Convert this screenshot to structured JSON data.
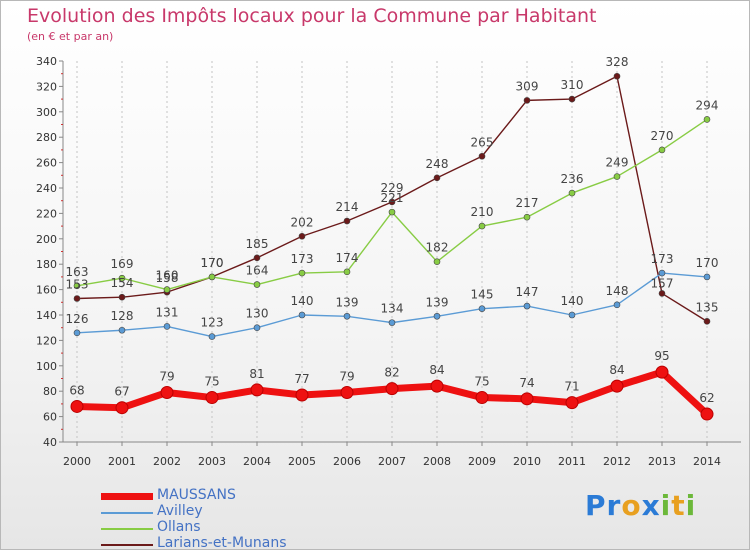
{
  "chart_data": {
    "type": "line",
    "title": "Evolution des Impôts locaux pour la Commune par Habitant",
    "subtitle": "(en € et par an)",
    "categories": [
      "2000",
      "2001",
      "2002",
      "2003",
      "2004",
      "2005",
      "2006",
      "2007",
      "2008",
      "2009",
      "2010",
      "2011",
      "2012",
      "2013",
      "2014"
    ],
    "ylim": [
      40,
      340
    ],
    "yticks": [
      40,
      60,
      80,
      100,
      120,
      140,
      160,
      180,
      200,
      220,
      240,
      260,
      280,
      300,
      320,
      340
    ],
    "grid": "vertical dashed",
    "legend_position": "bottom-left",
    "series": [
      {
        "name": "MAUSSANS",
        "color": "#ee1111",
        "values": [
          68,
          67,
          79,
          75,
          81,
          77,
          79,
          82,
          84,
          75,
          74,
          71,
          84,
          95,
          62
        ]
      },
      {
        "name": "Avilley",
        "color": "#5b9bd5",
        "values": [
          126,
          128,
          131,
          123,
          130,
          140,
          139,
          134,
          139,
          145,
          147,
          140,
          148,
          173,
          170
        ]
      },
      {
        "name": "Ollans",
        "color": "#88cc44",
        "values": [
          163,
          169,
          160,
          170,
          164,
          173,
          174,
          221,
          182,
          210,
          217,
          236,
          249,
          270,
          294
        ]
      },
      {
        "name": "Larians-et-Munans",
        "color": "#6b1a1a",
        "values": [
          153,
          154,
          158,
          170,
          185,
          202,
          214,
          229,
          248,
          265,
          309,
          310,
          328,
          157,
          135
        ]
      }
    ]
  },
  "logo": {
    "text": "Proxiti",
    "letters": [
      "P",
      "r",
      "o",
      "x",
      "i",
      "t",
      "i"
    ],
    "colors": [
      "#2b7bd6",
      "#2b7bd6",
      "#e8a020",
      "#2b7bd6",
      "#6cb83a",
      "#e8a020",
      "#6cb83a"
    ]
  }
}
